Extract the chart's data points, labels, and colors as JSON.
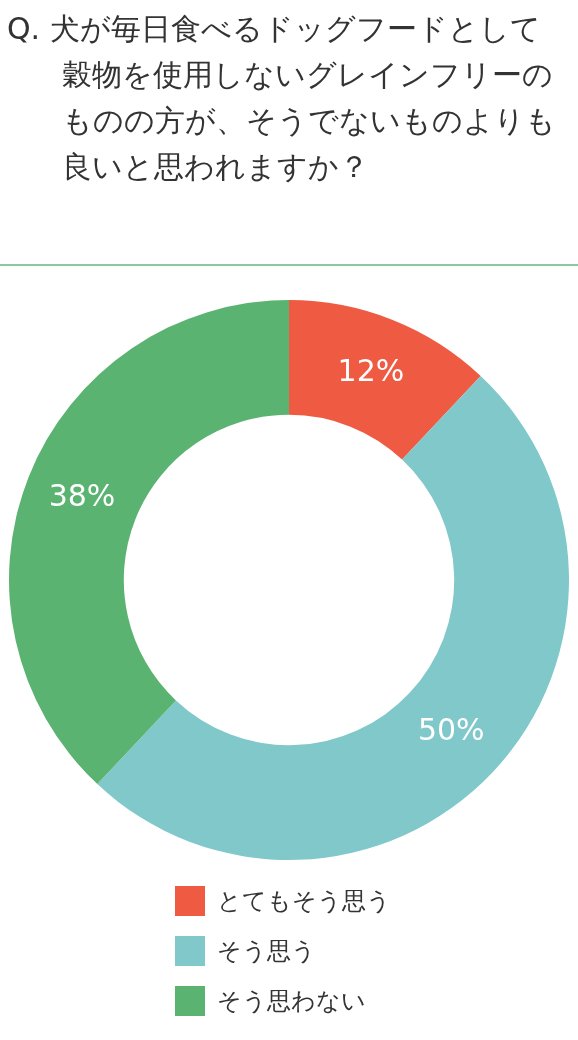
{
  "chart_data": {
    "type": "donut",
    "title": "Q. 犬が毎日食べるドッグフードとして穀物を使用しないグレインフリーのものの方が、そうでないものよりも良いと思われますか？",
    "categories": [
      "とてもそう思う",
      "そう思う",
      "そう思わない"
    ],
    "values": [
      12,
      50,
      38
    ],
    "value_labels": [
      "12%",
      "50%",
      "38%"
    ],
    "colors": [
      "#ef5a42",
      "#80c8ca",
      "#5ab370"
    ],
    "legend": "bottom"
  }
}
